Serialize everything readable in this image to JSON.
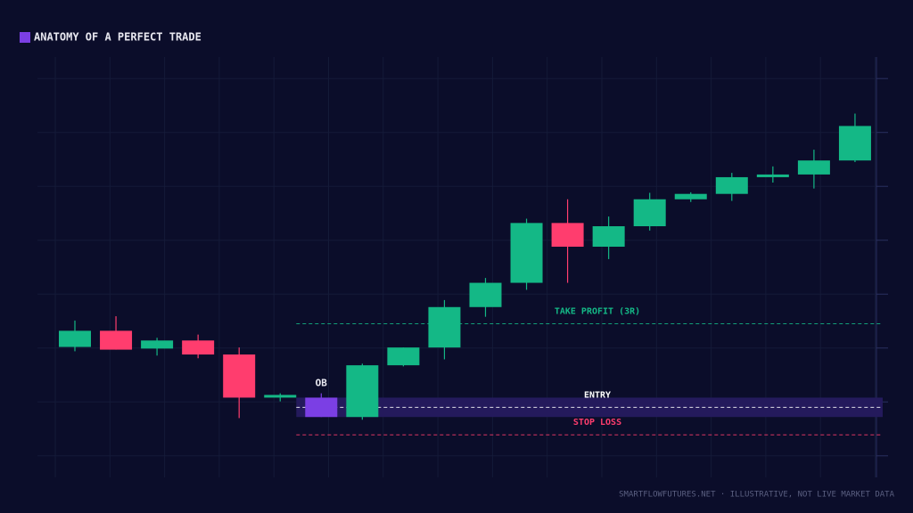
{
  "chart_data": {
    "type": "candlestick",
    "title": "ANATOMY OF A PERFECT TRADE",
    "title_color": "#7b3fe4",
    "footer": "SMARTFLOWFUTURES.NET · ILLUSTRATIVE, NOT LIVE MARKET DATA",
    "open": [
      120.2,
      123.2,
      119.9,
      121.4,
      118.8,
      110.8,
      110.8,
      107.2,
      116.8,
      120.1,
      127.6,
      132.1,
      143.2,
      138.8,
      142.6,
      147.6,
      148.6,
      151.7,
      152.2,
      154.8
    ],
    "high": [
      125.1,
      125.9,
      121.9,
      122.5,
      120.1,
      111.6,
      111.6,
      117.1,
      120.1,
      128.9,
      133.0,
      144.0,
      147.6,
      144.4,
      148.8,
      148.9,
      152.5,
      153.7,
      156.8,
      163.5
    ],
    "low": [
      119.4,
      119.7,
      118.6,
      118.1,
      107.0,
      110.1,
      107.2,
      106.7,
      116.6,
      117.9,
      125.8,
      130.8,
      132.1,
      136.5,
      141.8,
      147.1,
      147.3,
      150.7,
      149.6,
      154.5
    ],
    "close": [
      123.2,
      119.7,
      121.4,
      118.8,
      110.8,
      111.3,
      107.2,
      116.8,
      120.1,
      127.6,
      132.1,
      143.2,
      138.8,
      142.6,
      147.6,
      148.6,
      151.7,
      152.2,
      154.8,
      161.2
    ],
    "up_color": "#14b886",
    "down_color": "#ff3d6e",
    "highlight": {
      "index": 6,
      "label": "OB",
      "color": "#7b3fe4"
    },
    "zone": {
      "range": [
        107.2,
        110.8
      ],
      "color": "#241a5c"
    },
    "levels": [
      {
        "name": "TAKE PROFIT (3R)",
        "value": 124.5,
        "color": "#14b886"
      },
      {
        "name": "ENTRY",
        "value": 109.0,
        "color": "#ffffff"
      },
      {
        "name": "STOP LOSS",
        "value": 103.9,
        "color": "#ff3d6e"
      }
    ],
    "ylim": [
      96,
      174
    ],
    "yticks": [
      100,
      110,
      120,
      130,
      140,
      150,
      160,
      170
    ],
    "grid": true
  }
}
